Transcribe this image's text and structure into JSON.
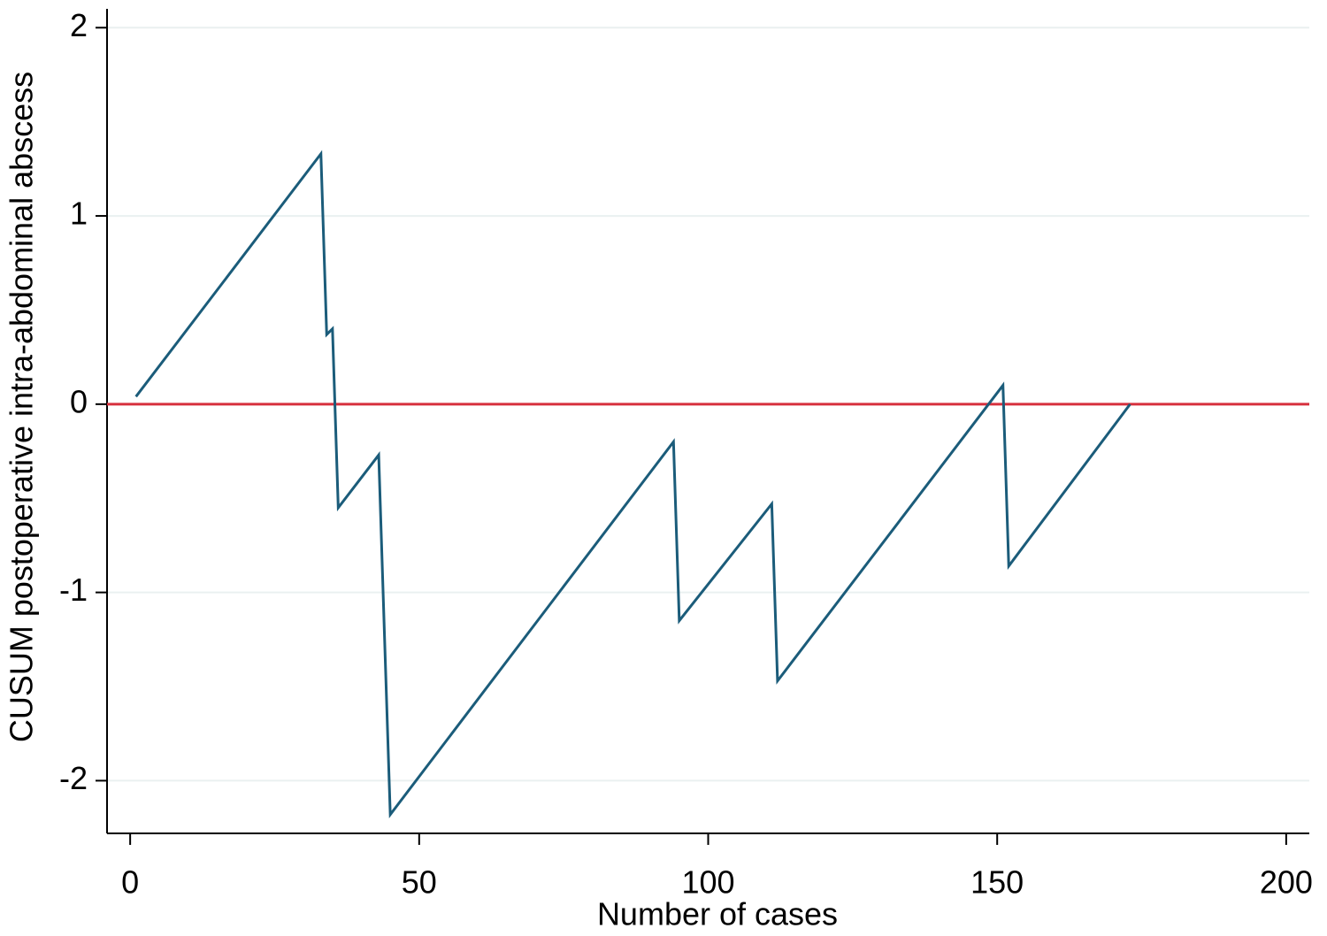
{
  "chart_data": {
    "type": "line",
    "xlabel": "Number of cases",
    "ylabel": "CUSUM postoperative intra-abdominal abscess",
    "x": [
      1,
      33,
      34,
      35,
      36,
      43,
      44,
      45,
      94,
      95,
      111,
      112,
      151,
      152,
      173
    ],
    "series": [
      {
        "color": "#1b5c7a",
        "values": [
          0.04,
          1.33,
          0.37,
          0.4,
          -0.55,
          -0.27,
          -1.23,
          -2.18,
          -0.2,
          -1.15,
          -0.53,
          -1.47,
          0.1,
          -0.86,
          0.0
        ]
      }
    ],
    "reference_line": {
      "value": 0,
      "color": "#d7303d"
    },
    "xlim": [
      -4,
      204
    ],
    "xticks": [
      0,
      50,
      100,
      150,
      200
    ],
    "ylim": [
      -2.28,
      2.1
    ],
    "yticks": [
      -2,
      -1,
      0,
      1,
      2
    ],
    "grid": true
  }
}
